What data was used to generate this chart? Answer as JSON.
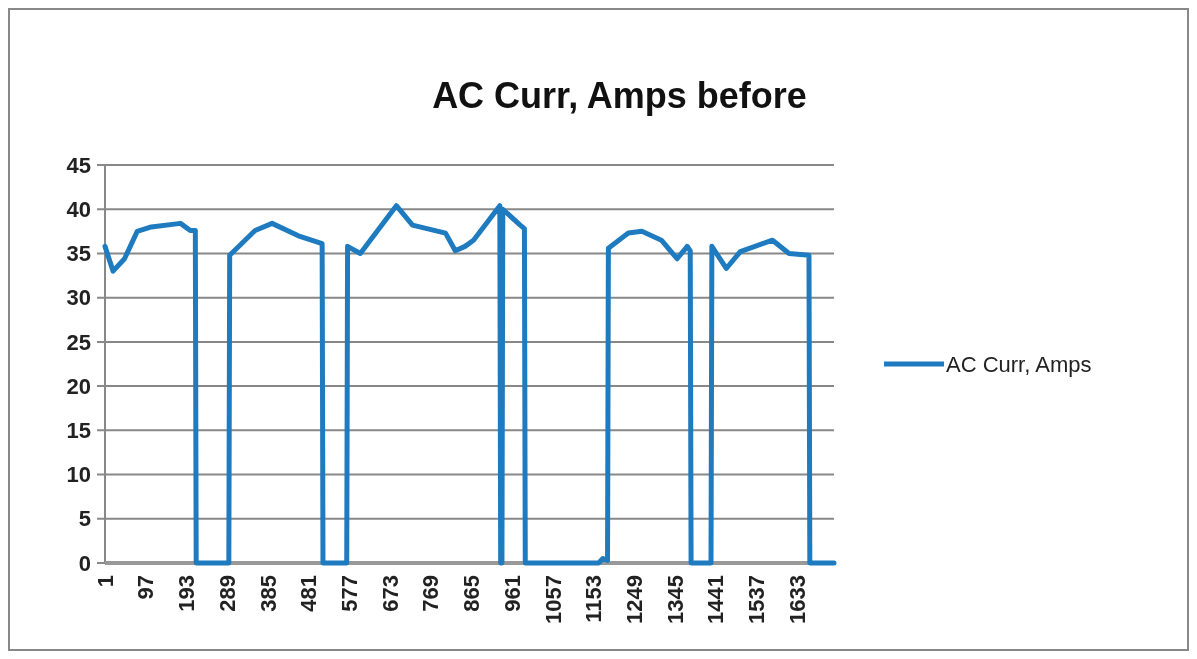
{
  "chart_data": {
    "type": "line",
    "title": "AC Curr, Amps before",
    "x": [
      1,
      20,
      47,
      77,
      110,
      179,
      202,
      214,
      216,
      293,
      295,
      355,
      395,
      457,
      513,
      515,
      571,
      573,
      603,
      688,
      726,
      804,
      827,
      850,
      870,
      932,
      934,
      937,
      939,
      980,
      990,
      992,
      1165,
      1175,
      1186,
      1188,
      1235,
      1267,
      1313,
      1350,
      1374,
      1381,
      1383,
      1430,
      1432,
      1466,
      1499,
      1575,
      1614,
      1661,
      1663,
      1720
    ],
    "series": [
      {
        "name": "AC Curr, Amps",
        "color": "#1f7bc0",
        "values": [
          35.8,
          33,
          34.4,
          37.5,
          38,
          38.4,
          37.6,
          37.6,
          0,
          0,
          34.8,
          37.6,
          38.4,
          37,
          36.1,
          0,
          0,
          35.8,
          35,
          40.4,
          38.2,
          37.3,
          35.3,
          35.8,
          36.5,
          40.4,
          0,
          0,
          40,
          38.2,
          37.8,
          0,
          0,
          0.5,
          0.3,
          35.6,
          37.3,
          37.5,
          36.5,
          34.4,
          35.8,
          35.3,
          0,
          0,
          35.8,
          33.3,
          35.2,
          36.5,
          35,
          34.8,
          0,
          0
        ]
      }
    ],
    "xlim": [
      1,
      1720
    ],
    "xticks": [
      1,
      97,
      193,
      289,
      385,
      481,
      577,
      673,
      769,
      865,
      961,
      1057,
      1153,
      1249,
      1345,
      1441,
      1537,
      1633
    ],
    "ylim": [
      0,
      45
    ],
    "yticks": [
      0,
      5,
      10,
      15,
      20,
      25,
      30,
      35,
      40,
      45
    ],
    "grid": "y",
    "legend": "right",
    "marker": "none",
    "line_style": "solid"
  }
}
